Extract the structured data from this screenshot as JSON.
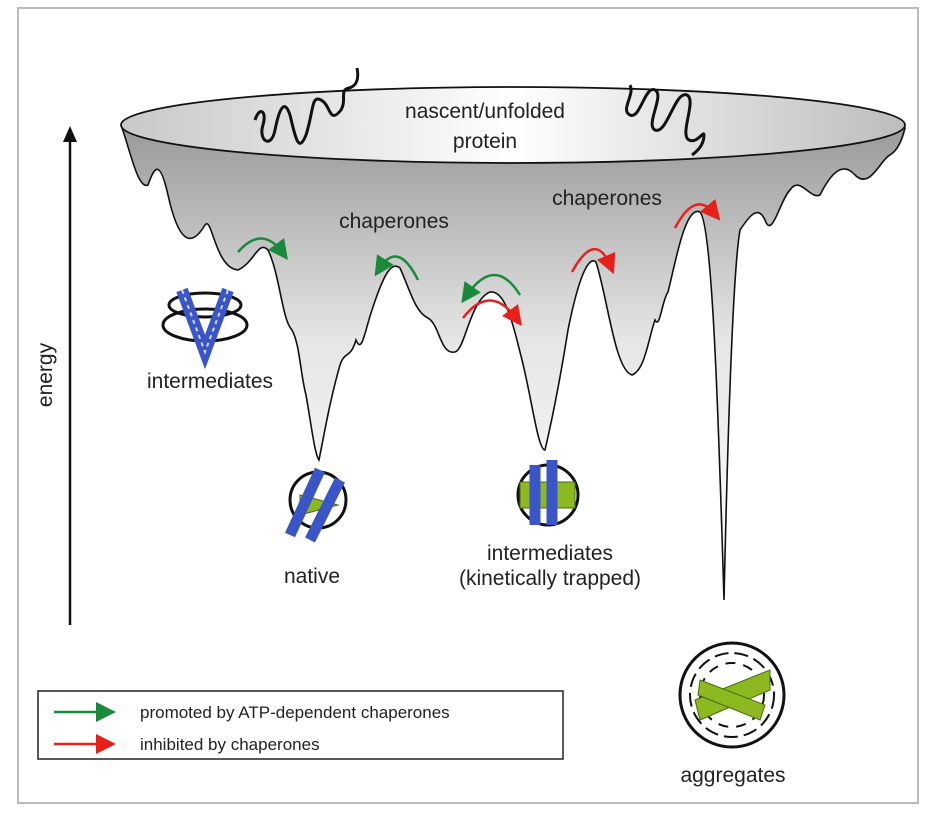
{
  "labels": {
    "top": [
      "nascent/unfolded",
      "protein"
    ],
    "chaperones_left": "chaperones",
    "chaperones_right": "chaperones",
    "intermediates": "intermediates",
    "native": "native",
    "trapped": [
      "intermediates",
      "(kinetically trapped)"
    ],
    "aggregates": "aggregates",
    "axis": "energy"
  },
  "legend": [
    {
      "label": "promoted by ATP-dependent chaperones",
      "color": "#1a8a3a"
    },
    {
      "label": "inhibited by chaperones",
      "color": "#e8201c"
    }
  ],
  "colors": {
    "promote": "#1a8a3a",
    "inhibit": "#e8201c",
    "helix": "#3a55c8",
    "sheet": "#8cb820"
  }
}
